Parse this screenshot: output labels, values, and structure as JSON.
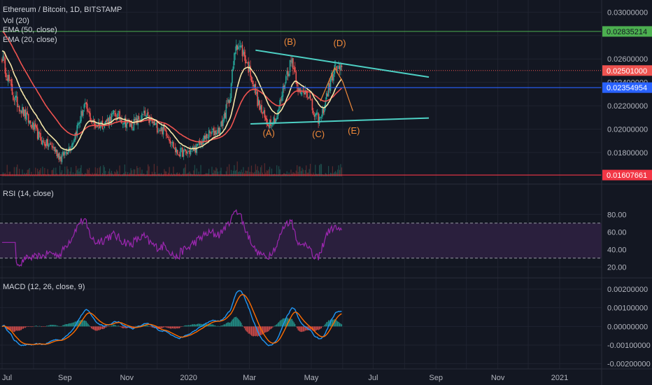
{
  "header": {
    "title": "Ethereum / Bitcoin, 1D, BITSTAMP",
    "studies": [
      "Vol (20)",
      "EMA (50, close)",
      "EMA (20, close)"
    ]
  },
  "colors": {
    "background": "#131722",
    "grid": "#1f2330",
    "text": "#b2b5be",
    "candle_up": "#26a69a",
    "candle_down": "#ef5350",
    "ema50": "#ef5350",
    "ema20": "#f5e6a8",
    "triangle": "#4dd0c4",
    "wave_label": "#f08a3a",
    "rsi": "#9c27b0",
    "rsi_band": "#2a1f3d",
    "macd": "#2196f3",
    "signal": "#ff6d00",
    "line_green": "#4caf50",
    "line_red_dotted": "#ef5350",
    "line_blue": "#2962ff",
    "line_red": "#f23645"
  },
  "x_axis": {
    "ticks": [
      "Jul",
      "Sep",
      "Nov",
      "2020",
      "Mar",
      "May",
      "Jul",
      "Sep",
      "Nov",
      "2021"
    ]
  },
  "price_pane": {
    "ticks": [
      "0.03000000",
      "0.02600000",
      "0.02200000",
      "0.02000000",
      "0.01800000"
    ],
    "hidden_tick_values": [
      0.024
    ],
    "ylim": [
      0.0162,
      0.0308
    ],
    "price_tags": [
      {
        "label": "0.02835214",
        "value": 0.02835214,
        "color": "#4caf50",
        "text_color": "#131722"
      },
      {
        "label": "0.02501000",
        "value": 0.02501,
        "color": "#ef5350",
        "text_color": "#ffffff"
      },
      {
        "label": "0.02354954",
        "value": 0.02354954,
        "color": "#2962ff",
        "text_color": "#ffffff"
      },
      {
        "label": "0.01607661",
        "value": 0.01607661,
        "color": "#f23645",
        "text_color": "#ffffff"
      }
    ],
    "wave_labels": [
      {
        "text": "(A)",
        "date": "2020-03-20",
        "value": 0.0194
      },
      {
        "text": "(B)",
        "date": "2020-04-10",
        "value": 0.0272
      },
      {
        "text": "(C)",
        "date": "2020-05-08",
        "value": 0.0193
      },
      {
        "text": "(D)",
        "date": "2020-05-29",
        "value": 0.0271
      },
      {
        "text": "(E)",
        "date": "2020-06-12",
        "value": 0.0196
      }
    ],
    "triangle_lines": [
      {
        "from": {
          "date": "2020-03-07",
          "value": 0.02675
        },
        "to": {
          "date": "2020-08-25",
          "value": 0.02445
        }
      },
      {
        "from": {
          "date": "2020-03-02",
          "value": 0.02045
        },
        "to": {
          "date": "2020-08-25",
          "value": 0.02095
        }
      }
    ],
    "projection_path": [
      {
        "date": "2020-05-10",
        "value": 0.0224
      },
      {
        "date": "2020-05-24",
        "value": 0.02525
      },
      {
        "date": "2020-06-01",
        "value": 0.02405
      },
      {
        "date": "2020-06-11",
        "value": 0.02155
      }
    ]
  },
  "rsi_pane": {
    "label": "RSI (14, close)",
    "ticks": [
      "80.00",
      "60.00",
      "40.00",
      "20.00"
    ],
    "ylim": [
      13,
      97
    ],
    "band": [
      30,
      70
    ]
  },
  "macd_pane": {
    "label": "MACD (12, 26, close, 9)",
    "ticks": [
      "0.00200000",
      "0.00100000",
      "0.00000000",
      "-0.00100000",
      "-0.00200000"
    ],
    "ylim": [
      -0.0022,
      0.0023
    ]
  },
  "chart_data": {
    "type": "candlestick",
    "title": "Ethereum / Bitcoin, 1D, BITSTAMP",
    "interval": "1D",
    "date_range": [
      "2019-07-01",
      "2020-05-31"
    ],
    "close_anchors": [
      {
        "date": "2019-07-01",
        "value": 0.0262
      },
      {
        "date": "2019-07-12",
        "value": 0.0228
      },
      {
        "date": "2019-07-25",
        "value": 0.021
      },
      {
        "date": "2019-08-10",
        "value": 0.0189
      },
      {
        "date": "2019-08-20",
        "value": 0.0185
      },
      {
        "date": "2019-08-28",
        "value": 0.0175
      },
      {
        "date": "2019-09-08",
        "value": 0.0188
      },
      {
        "date": "2019-09-20",
        "value": 0.022
      },
      {
        "date": "2019-09-30",
        "value": 0.0203
      },
      {
        "date": "2019-10-10",
        "value": 0.0205
      },
      {
        "date": "2019-10-20",
        "value": 0.0213
      },
      {
        "date": "2019-11-05",
        "value": 0.0203
      },
      {
        "date": "2019-11-18",
        "value": 0.0212
      },
      {
        "date": "2019-11-30",
        "value": 0.0202
      },
      {
        "date": "2019-12-10",
        "value": 0.0198
      },
      {
        "date": "2019-12-20",
        "value": 0.018
      },
      {
        "date": "2019-12-31",
        "value": 0.018
      },
      {
        "date": "2020-01-10",
        "value": 0.0185
      },
      {
        "date": "2020-01-20",
        "value": 0.0195
      },
      {
        "date": "2020-02-01",
        "value": 0.02
      },
      {
        "date": "2020-02-10",
        "value": 0.0225
      },
      {
        "date": "2020-02-17",
        "value": 0.0275
      },
      {
        "date": "2020-02-24",
        "value": 0.0265
      },
      {
        "date": "2020-03-02",
        "value": 0.0248
      },
      {
        "date": "2020-03-10",
        "value": 0.0221
      },
      {
        "date": "2020-03-18",
        "value": 0.0205
      },
      {
        "date": "2020-03-28",
        "value": 0.021
      },
      {
        "date": "2020-04-06",
        "value": 0.0245
      },
      {
        "date": "2020-04-12",
        "value": 0.026
      },
      {
        "date": "2020-04-20",
        "value": 0.0228
      },
      {
        "date": "2020-04-26",
        "value": 0.0235
      },
      {
        "date": "2020-05-04",
        "value": 0.0211
      },
      {
        "date": "2020-05-10",
        "value": 0.0208
      },
      {
        "date": "2020-05-18",
        "value": 0.0235
      },
      {
        "date": "2020-05-24",
        "value": 0.0252
      },
      {
        "date": "2020-05-31",
        "value": 0.025
      }
    ],
    "series": [
      {
        "name": "EMA (50, close)",
        "start_value": 0.0285
      },
      {
        "name": "EMA (20, close)",
        "start_value": 0.0268
      }
    ],
    "volume_series": "Vol (20)"
  }
}
